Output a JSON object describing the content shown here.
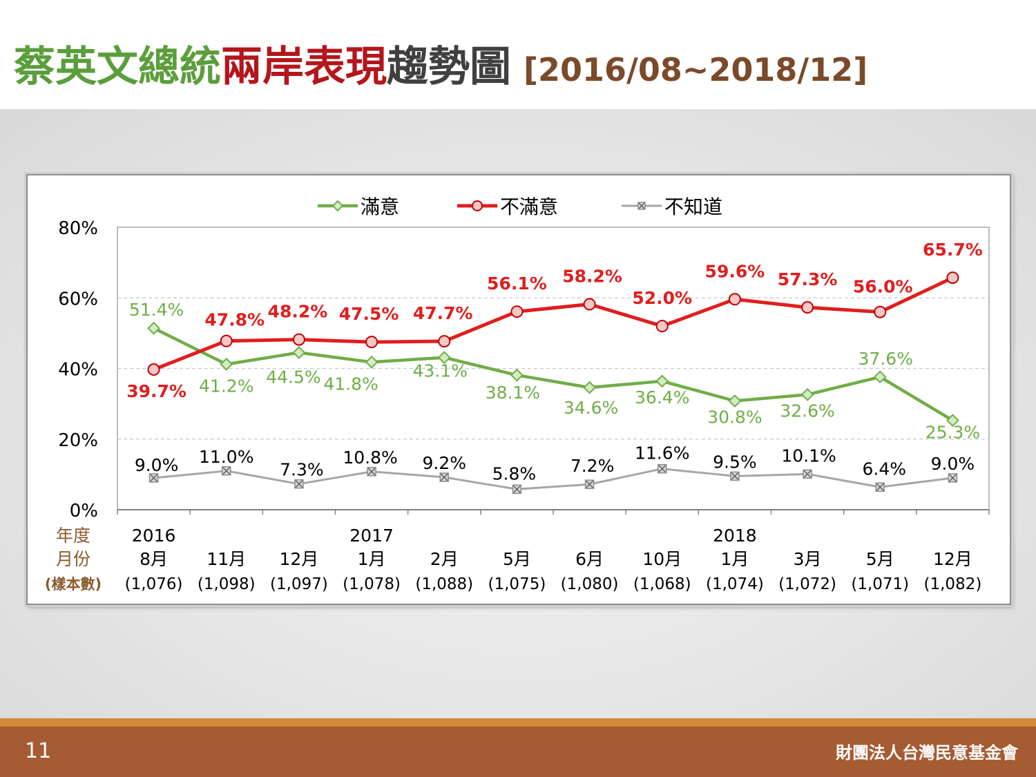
{
  "slide": {
    "title_part1": "蔡英文總統",
    "title_part2": "兩岸表現",
    "title_part3": "趨勢圖",
    "title_range": "[2016/08~2018/12]",
    "page_number": "11",
    "organization": "財團法人台灣民意基金會"
  },
  "colors": {
    "title_green": "#5b9e3c",
    "title_red": "#b3161b",
    "title_gray": "#404040",
    "title_brown": "#7a4a2a",
    "satisfied": "#70ad47",
    "dissatisfied": "#e01e1e",
    "unknown": "#a6a6a6",
    "row_label": "#8b5a2b"
  },
  "chart_data": {
    "type": "line",
    "title": "",
    "ylim": [
      0,
      80
    ],
    "yticks": [
      "0%",
      "20%",
      "40%",
      "60%",
      "80%"
    ],
    "grid": true,
    "legend": "top-center",
    "row_labels": {
      "year": "年度",
      "month": "月份",
      "sample": "(樣本數)"
    },
    "years": [
      "2016",
      "",
      "",
      "2017",
      "",
      "",
      "",
      "",
      "2018",
      "",
      "",
      ""
    ],
    "months": [
      "8月",
      "11月",
      "12月",
      "1月",
      "2月",
      "5月",
      "6月",
      "10月",
      "1月",
      "3月",
      "5月",
      "12月"
    ],
    "samples": [
      "(1,076)",
      "(1,098)",
      "(1,097)",
      "(1,078)",
      "(1,088)",
      "(1,075)",
      "(1,080)",
      "(1,068)",
      "(1,074)",
      "(1,072)",
      "(1,071)",
      "(1,082)"
    ],
    "series": [
      {
        "name": "滿意",
        "values": [
          51.4,
          41.2,
          44.5,
          41.8,
          43.1,
          38.1,
          34.6,
          36.4,
          30.8,
          32.6,
          37.6,
          25.3
        ],
        "labels": [
          "51.4%",
          "41.2%",
          "44.5%",
          "41.8%",
          "43.1%",
          "38.1%",
          "34.6%",
          "36.4%",
          "30.8%",
          "32.6%",
          "37.6%",
          "25.3%"
        ]
      },
      {
        "name": "不滿意",
        "values": [
          39.7,
          47.8,
          48.2,
          47.5,
          47.7,
          56.1,
          58.2,
          52.0,
          59.6,
          57.3,
          56.0,
          65.7
        ],
        "labels": [
          "39.7%",
          "47.8%",
          "48.2%",
          "47.5%",
          "47.7%",
          "56.1%",
          "58.2%",
          "52.0%",
          "59.6%",
          "57.3%",
          "56.0%",
          "65.7%"
        ]
      },
      {
        "name": "不知道",
        "values": [
          9.0,
          11.0,
          7.3,
          10.8,
          9.2,
          5.8,
          7.2,
          11.6,
          9.5,
          10.1,
          6.4,
          9.0
        ],
        "labels": [
          "9.0%",
          "11.0%",
          "7.3%",
          "10.8%",
          "9.2%",
          "5.8%",
          "7.2%",
          "11.6%",
          "9.5%",
          "10.1%",
          "6.4%",
          "9.0%"
        ]
      }
    ]
  }
}
